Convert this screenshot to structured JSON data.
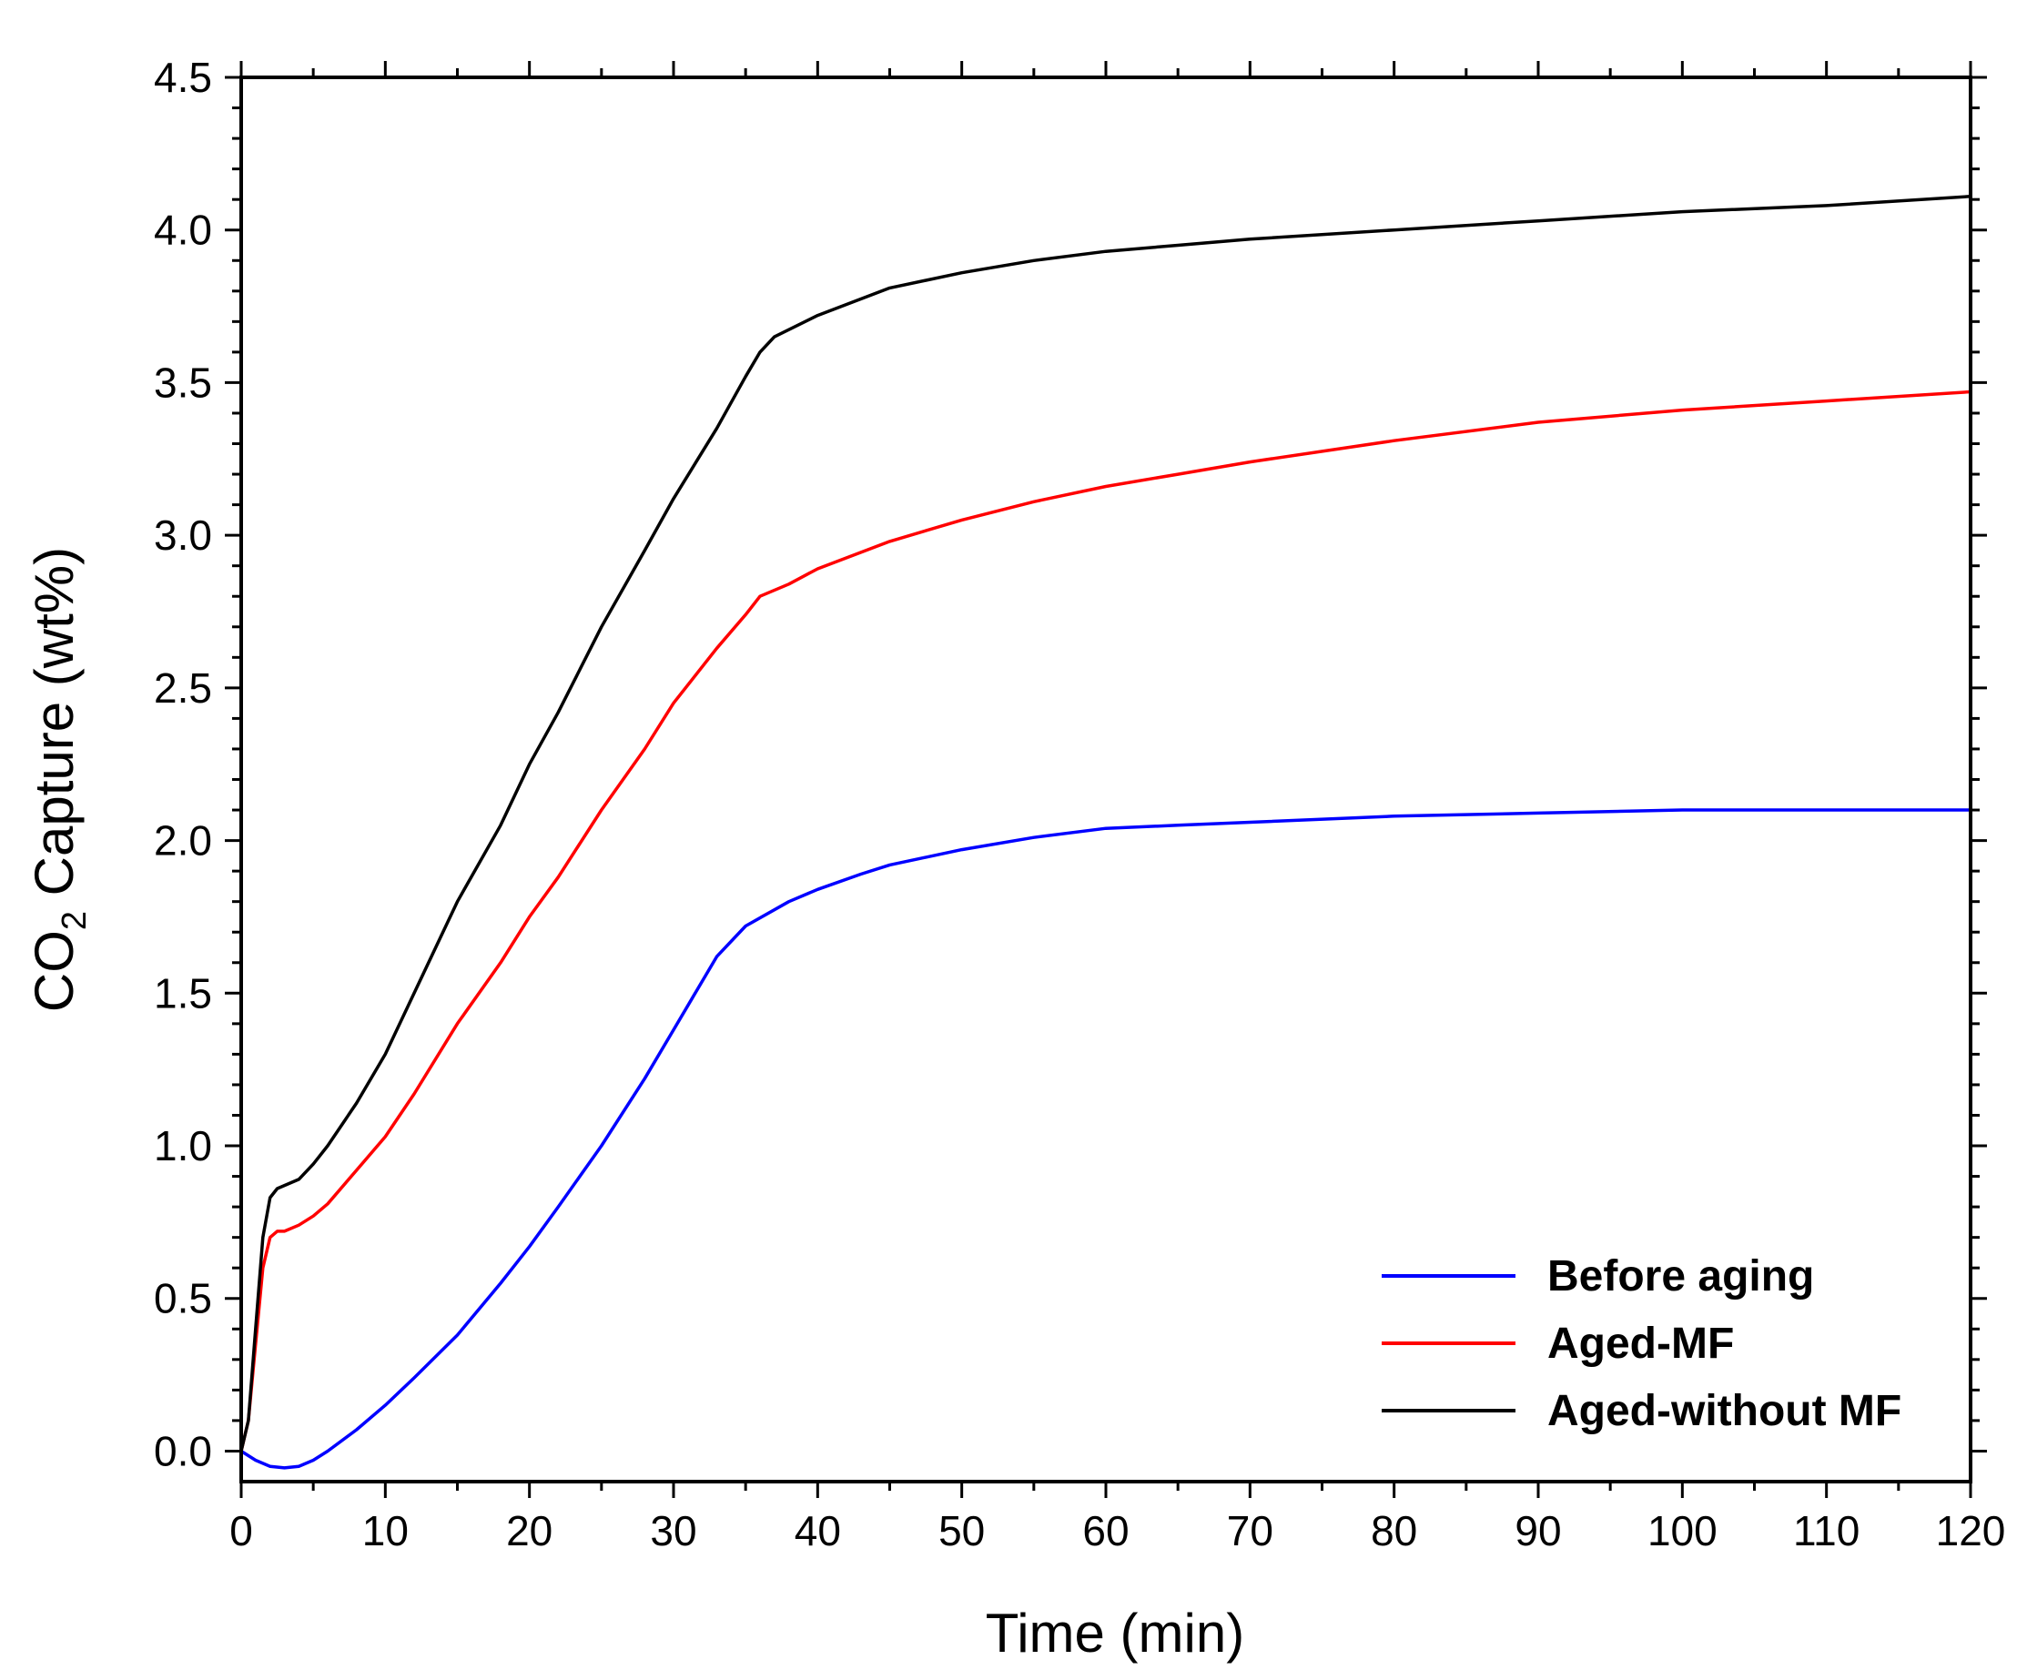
{
  "chart_data": {
    "type": "line",
    "title": "",
    "xlabel": "Time (min)",
    "ylabel_prefix": "CO",
    "ylabel_subscript": "2",
    "ylabel_suffix": " Capture (wt%)",
    "xlim": [
      0,
      120
    ],
    "ylim": [
      -0.1,
      4.5
    ],
    "x_ticks": [
      0,
      10,
      20,
      30,
      40,
      50,
      60,
      70,
      80,
      90,
      100,
      110,
      120
    ],
    "x_tick_labels": [
      "0",
      "10",
      "20",
      "30",
      "40",
      "50",
      "60",
      "70",
      "80",
      "90",
      "100",
      "110",
      "120"
    ],
    "y_ticks": [
      0.0,
      0.5,
      1.0,
      1.5,
      2.0,
      2.5,
      3.0,
      3.5,
      4.0,
      4.5
    ],
    "y_tick_labels": [
      "0.0",
      "0.5",
      "1.0",
      "1.5",
      "2.0",
      "2.5",
      "3.0",
      "3.5",
      "4.0",
      "4.5"
    ],
    "grid": false,
    "legend_position": "bottom-right",
    "series": [
      {
        "name": "Before aging",
        "color": "#0000ff",
        "x": [
          0,
          1,
          2,
          3,
          4,
          5,
          6,
          8,
          10,
          12,
          15,
          18,
          20,
          22,
          25,
          28,
          30,
          33,
          35,
          38,
          40,
          43,
          45,
          50,
          55,
          60,
          65,
          70,
          80,
          90,
          100,
          110,
          120
        ],
        "y": [
          0.0,
          -0.03,
          -0.05,
          -0.055,
          -0.05,
          -0.03,
          0.0,
          0.07,
          0.15,
          0.24,
          0.38,
          0.55,
          0.67,
          0.8,
          1.0,
          1.22,
          1.38,
          1.62,
          1.72,
          1.8,
          1.84,
          1.89,
          1.92,
          1.97,
          2.01,
          2.04,
          2.05,
          2.06,
          2.08,
          2.09,
          2.1,
          2.1,
          2.1
        ]
      },
      {
        "name": "Aged-MF",
        "color": "#ff0000",
        "x": [
          0,
          0.5,
          1,
          1.5,
          2,
          2.5,
          3,
          4,
          5,
          6,
          8,
          10,
          12,
          15,
          18,
          20,
          22,
          25,
          28,
          30,
          33,
          35,
          36,
          38,
          40,
          45,
          50,
          55,
          60,
          65,
          70,
          80,
          90,
          100,
          110,
          120
        ],
        "y": [
          0.0,
          0.1,
          0.35,
          0.6,
          0.7,
          0.72,
          0.72,
          0.74,
          0.77,
          0.81,
          0.92,
          1.03,
          1.17,
          1.4,
          1.6,
          1.75,
          1.88,
          2.1,
          2.3,
          2.45,
          2.63,
          2.74,
          2.8,
          2.84,
          2.89,
          2.98,
          3.05,
          3.11,
          3.16,
          3.2,
          3.24,
          3.31,
          3.37,
          3.41,
          3.44,
          3.47
        ]
      },
      {
        "name": "Aged-without MF",
        "color": "#000000",
        "x": [
          0,
          0.5,
          1,
          1.5,
          2,
          2.5,
          3,
          4,
          5,
          6,
          8,
          10,
          12,
          15,
          18,
          20,
          22,
          25,
          28,
          30,
          33,
          35,
          36,
          37,
          40,
          45,
          50,
          55,
          60,
          65,
          70,
          80,
          90,
          100,
          110,
          120
        ],
        "y": [
          0.0,
          0.1,
          0.4,
          0.7,
          0.83,
          0.86,
          0.87,
          0.89,
          0.94,
          1.0,
          1.14,
          1.3,
          1.5,
          1.8,
          2.05,
          2.25,
          2.42,
          2.7,
          2.95,
          3.12,
          3.35,
          3.52,
          3.6,
          3.65,
          3.72,
          3.81,
          3.86,
          3.9,
          3.93,
          3.95,
          3.97,
          4.0,
          4.03,
          4.06,
          4.08,
          4.11
        ]
      }
    ]
  }
}
